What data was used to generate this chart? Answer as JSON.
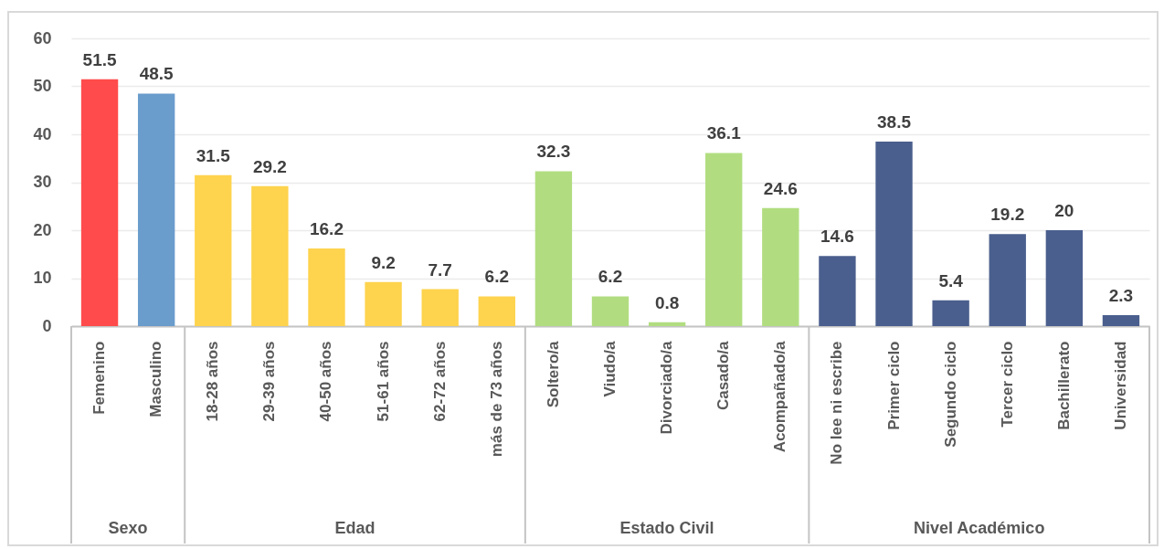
{
  "chart_data": {
    "type": "bar",
    "categories": [
      "Femenino",
      "Masculino",
      "18-28 años",
      "29-39 años",
      "40-50 años",
      "51-61 años",
      "62-72 años",
      "más de 73 años",
      "Soltero/a",
      "Viudo/a",
      "Divorciado/a",
      "Casado/a",
      "Acompañado/a",
      "No lee ni escribe",
      "Primer ciclo",
      "Segundo ciclo",
      "Tercer ciclo",
      "Bachillerato",
      "Universidad"
    ],
    "series": [
      {
        "colors": [
          "#ff4b4b",
          "#6a9ccc",
          null,
          null,
          null,
          null,
          null,
          null,
          null,
          null,
          null,
          null,
          null,
          null,
          null,
          null,
          null,
          null,
          null
        ],
        "values": [
          51.5,
          48.5,
          null,
          null,
          null,
          null,
          null,
          null,
          null,
          null,
          null,
          null,
          null,
          null,
          null,
          null,
          null,
          null,
          null
        ]
      },
      {
        "color": "#fed34d",
        "values": [
          null,
          null,
          31.5,
          29.2,
          16.2,
          9.2,
          7.7,
          6.2,
          null,
          null,
          null,
          null,
          null,
          null,
          null,
          null,
          null,
          null,
          null
        ]
      },
      {
        "color": "#b1dd80",
        "values": [
          null,
          null,
          null,
          null,
          null,
          null,
          null,
          null,
          32.3,
          6.2,
          0.8,
          36.1,
          24.6,
          null,
          null,
          null,
          null,
          null,
          null
        ]
      },
      {
        "color": "#4a5f8d",
        "values": [
          null,
          null,
          null,
          null,
          null,
          null,
          null,
          null,
          null,
          null,
          null,
          null,
          null,
          14.6,
          38.5,
          5.4,
          19.2,
          20,
          2.3
        ]
      }
    ],
    "annotations": [
      "Sexo",
      "Edad",
      "Estado Civil",
      "Nivel Académico"
    ],
    "ylim": [
      0,
      60
    ],
    "yticks": [
      0,
      10,
      20,
      30,
      40,
      50,
      60
    ],
    "grid": "y",
    "data_labels": true
  }
}
